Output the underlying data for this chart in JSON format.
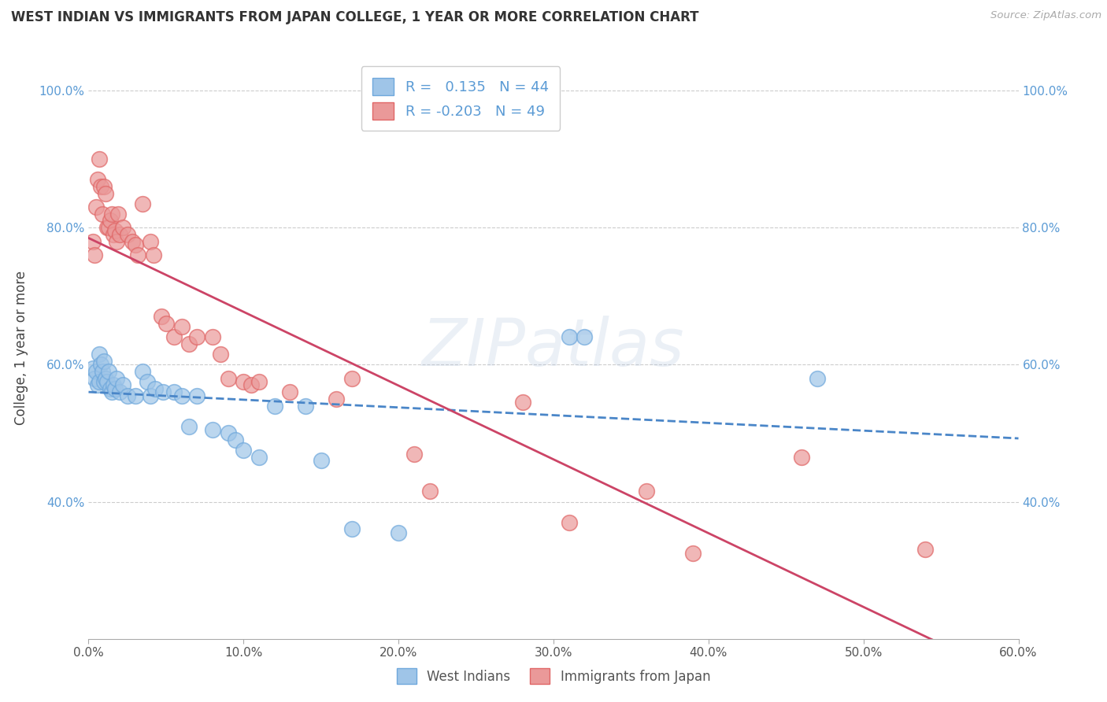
{
  "title": "WEST INDIAN VS IMMIGRANTS FROM JAPAN COLLEGE, 1 YEAR OR MORE CORRELATION CHART",
  "source": "Source: ZipAtlas.com",
  "ylabel": "College, 1 year or more",
  "legend_label_blue": "West Indians",
  "legend_label_pink": "Immigrants from Japan",
  "r_blue": 0.135,
  "n_blue": 44,
  "r_pink": -0.203,
  "n_pink": 49,
  "xlim": [
    0.0,
    0.6
  ],
  "ylim": [
    0.2,
    1.05
  ],
  "xtick_labels": [
    "0.0%",
    "",
    "10.0%",
    "",
    "20.0%",
    "",
    "30.0%",
    "",
    "40.0%",
    "",
    "50.0%",
    "",
    "60.0%"
  ],
  "xtick_values": [
    0.0,
    0.05,
    0.1,
    0.15,
    0.2,
    0.25,
    0.3,
    0.35,
    0.4,
    0.45,
    0.5,
    0.55,
    0.6
  ],
  "ytick_labels": [
    "40.0%",
    "60.0%",
    "80.0%",
    "100.0%"
  ],
  "ytick_values": [
    0.4,
    0.6,
    0.8,
    1.0
  ],
  "blue_scatter_x": [
    0.003,
    0.004,
    0.005,
    0.006,
    0.007,
    0.007,
    0.008,
    0.009,
    0.01,
    0.01,
    0.011,
    0.012,
    0.013,
    0.014,
    0.015,
    0.016,
    0.017,
    0.018,
    0.02,
    0.022,
    0.025,
    0.03,
    0.035,
    0.038,
    0.04,
    0.043,
    0.048,
    0.055,
    0.06,
    0.065,
    0.07,
    0.08,
    0.09,
    0.095,
    0.1,
    0.11,
    0.12,
    0.14,
    0.15,
    0.17,
    0.2,
    0.31,
    0.32,
    0.47
  ],
  "blue_scatter_y": [
    0.595,
    0.58,
    0.59,
    0.57,
    0.575,
    0.615,
    0.6,
    0.59,
    0.575,
    0.605,
    0.58,
    0.575,
    0.59,
    0.565,
    0.56,
    0.57,
    0.565,
    0.58,
    0.56,
    0.57,
    0.555,
    0.555,
    0.59,
    0.575,
    0.555,
    0.565,
    0.56,
    0.56,
    0.555,
    0.51,
    0.555,
    0.505,
    0.5,
    0.49,
    0.475,
    0.465,
    0.54,
    0.54,
    0.46,
    0.36,
    0.355,
    0.64,
    0.64,
    0.58
  ],
  "pink_scatter_x": [
    0.003,
    0.004,
    0.005,
    0.006,
    0.007,
    0.008,
    0.009,
    0.01,
    0.011,
    0.012,
    0.013,
    0.014,
    0.015,
    0.016,
    0.017,
    0.018,
    0.019,
    0.02,
    0.022,
    0.025,
    0.028,
    0.03,
    0.032,
    0.035,
    0.04,
    0.042,
    0.047,
    0.05,
    0.055,
    0.06,
    0.065,
    0.07,
    0.08,
    0.085,
    0.09,
    0.1,
    0.105,
    0.11,
    0.13,
    0.16,
    0.17,
    0.21,
    0.22,
    0.28,
    0.31,
    0.36,
    0.39,
    0.46,
    0.54
  ],
  "pink_scatter_y": [
    0.78,
    0.76,
    0.83,
    0.87,
    0.9,
    0.86,
    0.82,
    0.86,
    0.85,
    0.8,
    0.8,
    0.81,
    0.82,
    0.79,
    0.795,
    0.78,
    0.82,
    0.79,
    0.8,
    0.79,
    0.78,
    0.775,
    0.76,
    0.835,
    0.78,
    0.76,
    0.67,
    0.66,
    0.64,
    0.655,
    0.63,
    0.64,
    0.64,
    0.615,
    0.58,
    0.575,
    0.57,
    0.575,
    0.56,
    0.55,
    0.58,
    0.47,
    0.415,
    0.545,
    0.37,
    0.415,
    0.325,
    0.465,
    0.33
  ],
  "blue_color": "#9fc5e8",
  "pink_color": "#ea9999",
  "blue_edge_color": "#6fa8dc",
  "pink_edge_color": "#e06666",
  "blue_line_color": "#4a86c8",
  "pink_line_color": "#cc4466",
  "watermark": "ZIPatlas",
  "background_color": "#ffffff",
  "grid_color": "#cccccc"
}
